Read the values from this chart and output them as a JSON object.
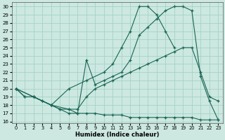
{
  "xlabel": "Humidex (Indice chaleur)",
  "bg_color": "#cce8e0",
  "grid_color": "#9ecfbf",
  "line_color": "#1a6655",
  "xlim": [
    0,
    23
  ],
  "ylim": [
    16,
    30
  ],
  "xticks": [
    0,
    1,
    2,
    3,
    4,
    5,
    6,
    7,
    8,
    9,
    10,
    11,
    12,
    13,
    14,
    15,
    16,
    17,
    18,
    19,
    20,
    21,
    22,
    23
  ],
  "yticks": [
    16,
    17,
    18,
    19,
    20,
    21,
    22,
    23,
    24,
    25,
    26,
    27,
    28,
    29,
    30
  ],
  "lines": [
    {
      "x": [
        0,
        2,
        4,
        6,
        8,
        10,
        11,
        12,
        13,
        14,
        15,
        16,
        17,
        18
      ],
      "y": [
        20,
        19,
        18,
        20,
        21,
        22,
        23,
        25,
        27,
        30,
        30,
        29,
        27,
        25
      ]
    },
    {
      "x": [
        0,
        2,
        4,
        6,
        7,
        8,
        9,
        10,
        11,
        12,
        13,
        14,
        15,
        16,
        17,
        18,
        19,
        20,
        21,
        22,
        23
      ],
      "y": [
        20,
        19,
        18,
        17.5,
        17.5,
        19,
        20,
        20.5,
        21,
        21.5,
        22,
        22.5,
        23,
        23.5,
        24,
        24.5,
        25,
        25,
        22,
        19,
        18.5
      ]
    },
    {
      "x": [
        0,
        1,
        2,
        3,
        4,
        5,
        6,
        7,
        8,
        9,
        10,
        11,
        12,
        13,
        14,
        15,
        16,
        17,
        18,
        19,
        20,
        21,
        22,
        23
      ],
      "y": [
        20,
        19,
        19,
        18.5,
        18,
        17.5,
        17.5,
        17,
        23.5,
        20.5,
        21,
        21.5,
        22,
        23.5,
        26.5,
        27.5,
        28.5,
        29.5,
        30,
        30,
        29.5,
        21.5,
        18.5,
        16.2
      ]
    },
    {
      "x": [
        0,
        1,
        2,
        3,
        4,
        5,
        6,
        7,
        8,
        9,
        10,
        11,
        12,
        13,
        14,
        15,
        16,
        17,
        18,
        19,
        20,
        21,
        22,
        23
      ],
      "y": [
        20,
        19,
        19,
        18.5,
        18,
        17.5,
        17,
        17,
        17,
        17,
        16.8,
        16.8,
        16.8,
        16.5,
        16.5,
        16.5,
        16.5,
        16.5,
        16.5,
        16.5,
        16.5,
        16.2,
        16.2,
        16.2
      ]
    }
  ]
}
